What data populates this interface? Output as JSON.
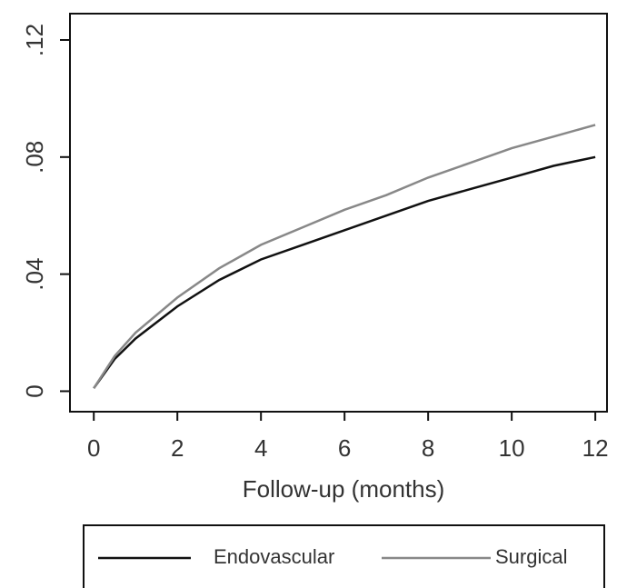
{
  "chart_data": {
    "type": "line",
    "x_label": "Follow-up (months)",
    "x": [
      0,
      0.5,
      1,
      2,
      3,
      4,
      5,
      6,
      7,
      8,
      9,
      10,
      11,
      12
    ],
    "series": [
      {
        "name": "Endovascular",
        "color": "#111111",
        "values": [
          0.001,
          0.011,
          0.018,
          0.029,
          0.038,
          0.045,
          0.05,
          0.055,
          0.06,
          0.065,
          0.069,
          0.073,
          0.077,
          0.08
        ]
      },
      {
        "name": "Surgical",
        "color": "#888888",
        "values": [
          0.001,
          0.012,
          0.02,
          0.032,
          0.042,
          0.05,
          0.056,
          0.062,
          0.067,
          0.073,
          0.078,
          0.083,
          0.087,
          0.091
        ]
      }
    ],
    "xlim": [
      -0.57,
      12.28
    ],
    "xticks": [
      0,
      2,
      4,
      6,
      8,
      10,
      12
    ],
    "ylim": [
      -0.007,
      0.129
    ],
    "yticks": [
      0,
      {
        "value": 0.04,
        "label": ".04"
      },
      {
        "value": 0.08,
        "label": ".08"
      },
      {
        "value": 0.12,
        "label": ".12"
      }
    ],
    "grid": false
  }
}
